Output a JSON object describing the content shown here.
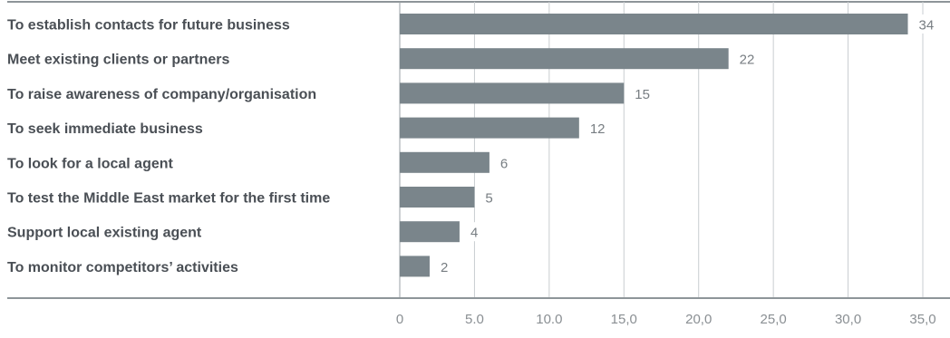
{
  "chart_data": {
    "type": "bar",
    "orientation": "horizontal",
    "categories": [
      "To establish contacts for future business",
      "Meet existing clients or partners",
      "To raise awareness of company/organisation",
      "To seek immediate business",
      "To look for a local agent",
      "To test the Middle East market for the first time",
      "Support local existing agent",
      "To monitor competitors’ activities"
    ],
    "values": [
      34,
      22,
      15,
      12,
      6,
      5,
      4,
      2
    ],
    "value_labels": [
      "34",
      "22",
      "15",
      "12",
      "6",
      "5",
      "4",
      "2"
    ],
    "xlim": [
      0,
      35
    ],
    "x_ticks": [
      0,
      5,
      10,
      15,
      20,
      25,
      30,
      35
    ],
    "x_tick_labels": [
      "0",
      "5.0",
      "10.0",
      "15,0",
      "20,0",
      "25,0",
      "30,0",
      "35,0"
    ],
    "grid": "vertical",
    "bar_color": "#7a858b",
    "label_color": "#4a4f55"
  }
}
